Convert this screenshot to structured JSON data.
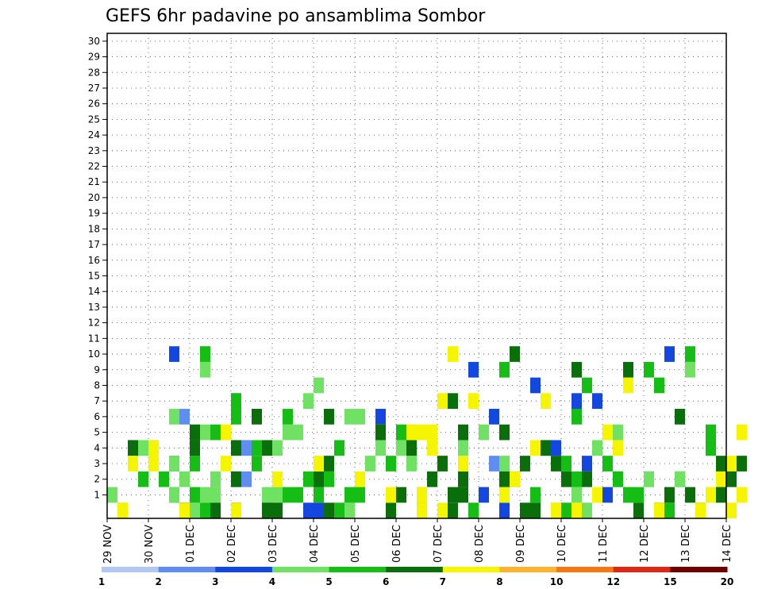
{
  "chart_data": {
    "type": "heatmap",
    "title": "GEFS 6hr padavine po ansamblima Sombor",
    "x_tick_labels": [
      "29 NOV",
      "30 NOV",
      "01 DEC",
      "02 DEC",
      "03 DEC",
      "04 DEC",
      "05 DEC",
      "06 DEC",
      "07 DEC",
      "08 DEC",
      "09 DEC",
      "10 DEC",
      "11 DEC",
      "12 DEC",
      "13 DEC",
      "14 DEC"
    ],
    "y_tick_labels": [
      "1",
      "2",
      "3",
      "4",
      "5",
      "6",
      "7",
      "8",
      "9",
      "10",
      "11",
      "12",
      "13",
      "14",
      "15",
      "16",
      "17",
      "18",
      "19",
      "20",
      "21",
      "22",
      "23",
      "24",
      "25",
      "26",
      "27",
      "28",
      "29",
      "30"
    ],
    "grid": true,
    "legend": {
      "placement": "bottom",
      "thresholds": [
        "1",
        "2",
        "3",
        "4",
        "5",
        "6",
        "7",
        "8",
        "10",
        "12",
        "15",
        "20"
      ],
      "colors": [
        "#b4c7f3",
        "#5f8ef0",
        "#1446e0",
        "#6fe264",
        "#14be14",
        "#0a6e0a",
        "#f5f500",
        "#fab432",
        "#f57814",
        "#dc2814",
        "#6e0000"
      ]
    },
    "cell_steps_per_day": 4,
    "cells": [
      [
        0,
        3,
        1
      ],
      [
        1,
        3,
        0
      ],
      [
        1,
        6,
        0
      ],
      [
        2,
        4,
        4
      ],
      [
        2,
        5,
        4
      ],
      [
        2,
        6,
        3
      ],
      [
        3,
        3,
        4
      ],
      [
        3,
        4,
        2
      ],
      [
        4,
        5,
        4
      ],
      [
        4,
        6,
        4
      ],
      [
        4,
        6,
        3
      ],
      [
        5,
        4,
        2
      ],
      [
        6,
        4,
        3
      ],
      [
        6,
        2,
        1
      ],
      [
        6,
        3,
        3
      ],
      [
        6,
        3,
        1
      ],
      [
        6,
        3,
        6
      ],
      [
        6,
        2,
        10
      ],
      [
        7,
        1,
        6
      ],
      [
        7,
        2,
        0
      ],
      [
        7,
        3,
        2
      ],
      [
        7,
        5,
        0
      ],
      [
        7,
        6,
        0
      ],
      [
        8,
        3,
        0
      ],
      [
        8,
        4,
        1
      ],
      [
        8,
        4,
        3
      ],
      [
        8,
        4,
        4
      ],
      [
        8,
        5,
        4
      ],
      [
        8,
        5,
        5
      ],
      [
        9,
        3,
        1
      ],
      [
        9,
        3,
        9
      ],
      [
        9,
        4,
        0
      ],
      [
        9,
        3,
        5
      ],
      [
        9,
        4,
        10
      ],
      [
        10,
        3,
        1
      ],
      [
        10,
        5,
        0
      ],
      [
        10,
        3,
        2
      ],
      [
        10,
        4,
        5
      ],
      [
        11,
        6,
        5
      ],
      [
        11,
        6,
        3
      ],
      [
        12,
        1,
        2
      ],
      [
        12,
        1,
        7
      ],
      [
        12,
        5,
        2
      ],
      [
        12,
        5,
        4
      ],
      [
        12,
        4,
        6
      ],
      [
        12,
        4,
        7
      ],
      [
        12,
        5,
        0
      ],
      [
        12,
        6,
        0
      ],
      [
        13,
        1,
        2
      ],
      [
        13,
        1,
        4
      ],
      [
        14,
        4,
        3
      ],
      [
        14,
        4,
        4
      ],
      [
        14,
        5,
        6
      ],
      [
        15,
        3,
        1
      ],
      [
        15,
        4,
        0
      ],
      [
        15,
        5,
        4
      ],
      [
        15,
        5,
        0
      ],
      [
        16,
        3,
        1
      ],
      [
        16,
        3,
        4
      ],
      [
        16,
        5,
        0
      ],
      [
        16,
        6,
        2
      ],
      [
        17,
        3,
        5
      ],
      [
        17,
        4,
        1
      ],
      [
        17,
        4,
        6
      ],
      [
        18,
        4,
        1
      ],
      [
        18,
        3,
        5
      ],
      [
        19,
        2,
        0
      ],
      [
        19,
        3,
        7
      ],
      [
        19,
        4,
        2
      ],
      [
        20,
        2,
        0
      ],
      [
        20,
        3,
        8
      ],
      [
        20,
        4,
        1
      ],
      [
        20,
        5,
        2
      ],
      [
        20,
        6,
        3
      ],
      [
        21,
        4,
        2
      ],
      [
        21,
        5,
        3
      ],
      [
        21,
        5,
        6
      ],
      [
        21,
        5,
        0
      ],
      [
        22,
        4,
        4
      ],
      [
        22,
        4,
        0
      ],
      [
        23,
        3,
        6
      ],
      [
        23,
        3,
        0
      ],
      [
        23,
        4,
        1
      ],
      [
        24,
        3,
        6
      ],
      [
        24,
        4,
        1
      ],
      [
        24,
        6,
        2
      ],
      [
        25,
        3,
        3
      ],
      [
        26,
        2,
        6
      ],
      [
        26,
        3,
        4
      ],
      [
        26,
        5,
        5
      ],
      [
        27,
        4,
        3
      ],
      [
        27,
        5,
        0
      ],
      [
        27,
        6,
        1
      ],
      [
        28,
        3,
        4
      ],
      [
        28,
        4,
        5
      ],
      [
        28,
        5,
        1
      ],
      [
        29,
        3,
        3
      ],
      [
        29,
        5,
        4
      ],
      [
        29,
        3,
        5
      ],
      [
        29,
        6,
        5
      ],
      [
        30,
        3,
        1
      ],
      [
        30,
        4,
        1
      ],
      [
        30,
        6,
        0
      ],
      [
        30,
        6,
        1
      ],
      [
        30,
        6,
        5
      ],
      [
        31,
        5,
        2
      ],
      [
        31,
        6,
        5
      ],
      [
        31,
        6,
        4
      ],
      [
        32,
        6,
        3
      ],
      [
        32,
        6,
        0
      ],
      [
        32,
        5,
        3
      ],
      [
        32,
        6,
        7
      ],
      [
        33,
        5,
        0
      ],
      [
        33,
        5,
        1
      ],
      [
        33,
        6,
        10
      ],
      [
        33,
        5,
        7
      ],
      [
        34,
        5,
        1
      ],
      [
        34,
        5,
        2
      ],
      [
        34,
        6,
        3
      ],
      [
        34,
        3,
        4
      ],
      [
        34,
        5,
        5
      ],
      [
        35,
        4,
        0
      ],
      [
        35,
        2,
        9
      ],
      [
        35,
        6,
        7
      ],
      [
        36,
        2,
        1
      ],
      [
        36,
        3,
        5
      ],
      [
        37,
        1,
        3
      ],
      [
        37,
        2,
        6
      ],
      [
        38,
        2,
        0
      ],
      [
        38,
        3,
        3
      ],
      [
        38,
        6,
        1
      ],
      [
        38,
        4,
        9
      ],
      [
        38,
        5,
        2
      ],
      [
        38,
        5,
        5
      ],
      [
        39,
        5,
        2
      ],
      [
        39,
        6,
        2
      ],
      [
        39,
        5,
        10
      ],
      [
        40,
        5,
        3
      ],
      [
        40,
        5,
        0
      ],
      [
        41,
        5,
        0
      ],
      [
        41,
        4,
        1
      ],
      [
        41,
        2,
        8
      ],
      [
        41,
        6,
        4
      ],
      [
        42,
        3,
        4
      ],
      [
        42,
        5,
        4
      ],
      [
        42,
        6,
        7
      ],
      [
        43,
        2,
        4
      ],
      [
        43,
        3,
        0
      ],
      [
        43,
        6,
        0
      ],
      [
        43,
        5,
        3
      ],
      [
        44,
        4,
        0
      ],
      [
        44,
        5,
        2
      ],
      [
        44,
        4,
        3
      ],
      [
        45,
        4,
        6
      ],
      [
        45,
        4,
        2
      ],
      [
        45,
        6,
        0
      ],
      [
        45,
        2,
        7
      ],
      [
        45,
        5,
        9
      ],
      [
        45,
        3,
        1
      ],
      [
        46,
        2,
        3
      ],
      [
        46,
        3,
        0
      ],
      [
        46,
        4,
        8
      ],
      [
        46,
        5,
        2
      ],
      [
        47,
        6,
        1
      ],
      [
        47,
        3,
        4
      ],
      [
        47,
        6,
        7
      ],
      [
        47,
        2,
        7
      ],
      [
        48,
        4,
        3
      ],
      [
        48,
        2,
        1
      ],
      [
        48,
        6,
        5
      ],
      [
        49,
        6,
        4
      ],
      [
        49,
        3,
        5
      ],
      [
        49,
        5,
        2
      ],
      [
        49,
        4,
        2
      ],
      [
        50,
        5,
        9
      ],
      [
        50,
        3,
        1
      ],
      [
        50,
        6,
        8
      ],
      [
        50,
        4,
        1
      ],
      [
        51,
        4,
        1
      ],
      [
        51,
        5,
        0
      ],
      [
        52,
        2,
        2
      ],
      [
        52,
        3,
        2
      ],
      [
        52,
        4,
        9
      ],
      [
        53,
        5,
        0
      ],
      [
        53,
        4,
        8
      ],
      [
        53,
        6,
        0
      ],
      [
        54,
        5,
        1
      ],
      [
        54,
        2,
        10
      ],
      [
        54,
        4,
        0
      ],
      [
        55,
        5,
        2
      ],
      [
        55,
        3,
        2
      ],
      [
        55,
        5,
        6
      ],
      [
        56,
        3,
        9
      ],
      [
        56,
        4,
        10
      ],
      [
        56,
        5,
        1
      ],
      [
        57,
        5,
        0
      ],
      [
        57,
        6,
        0
      ],
      [
        58,
        6,
        1
      ],
      [
        58,
        4,
        5
      ],
      [
        58,
        4,
        4
      ],
      [
        59,
        6,
        2
      ],
      [
        59,
        5,
        3
      ],
      [
        59,
        5,
        1
      ],
      [
        60,
        6,
        3
      ],
      [
        60,
        5,
        2
      ],
      [
        60,
        6,
        0
      ],
      [
        61,
        5,
        3
      ],
      [
        61,
        6,
        5
      ],
      [
        61,
        6,
        1
      ]
    ]
  }
}
